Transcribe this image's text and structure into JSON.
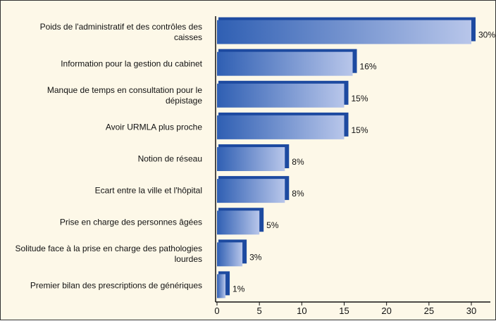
{
  "chart_data": {
    "type": "bar",
    "orientation": "horizontal",
    "categories": [
      "Poids de l'administratif et des contrôles des caisses",
      "Information pour la gestion du cabinet",
      "Manque de temps en consultation pour le dépistage",
      "Avoir URMLA plus proche",
      "Notion de réseau",
      "Ecart entre la ville et l'hôpital",
      "Prise en charge des personnes âgées",
      "Solitude face à la prise en charge des pathologies lourdes",
      "Premier bilan des prescriptions de génériques"
    ],
    "values": [
      30,
      16,
      15,
      15,
      8,
      8,
      5,
      3,
      1
    ],
    "value_labels": [
      "30%",
      "16%",
      "15%",
      "15%",
      "8%",
      "8%",
      "5%",
      "3%",
      "1%"
    ],
    "color": "#2f5fb3",
    "xlim": [
      0,
      30
    ],
    "xticks": [
      0,
      5,
      10,
      15,
      20,
      25,
      30
    ]
  }
}
